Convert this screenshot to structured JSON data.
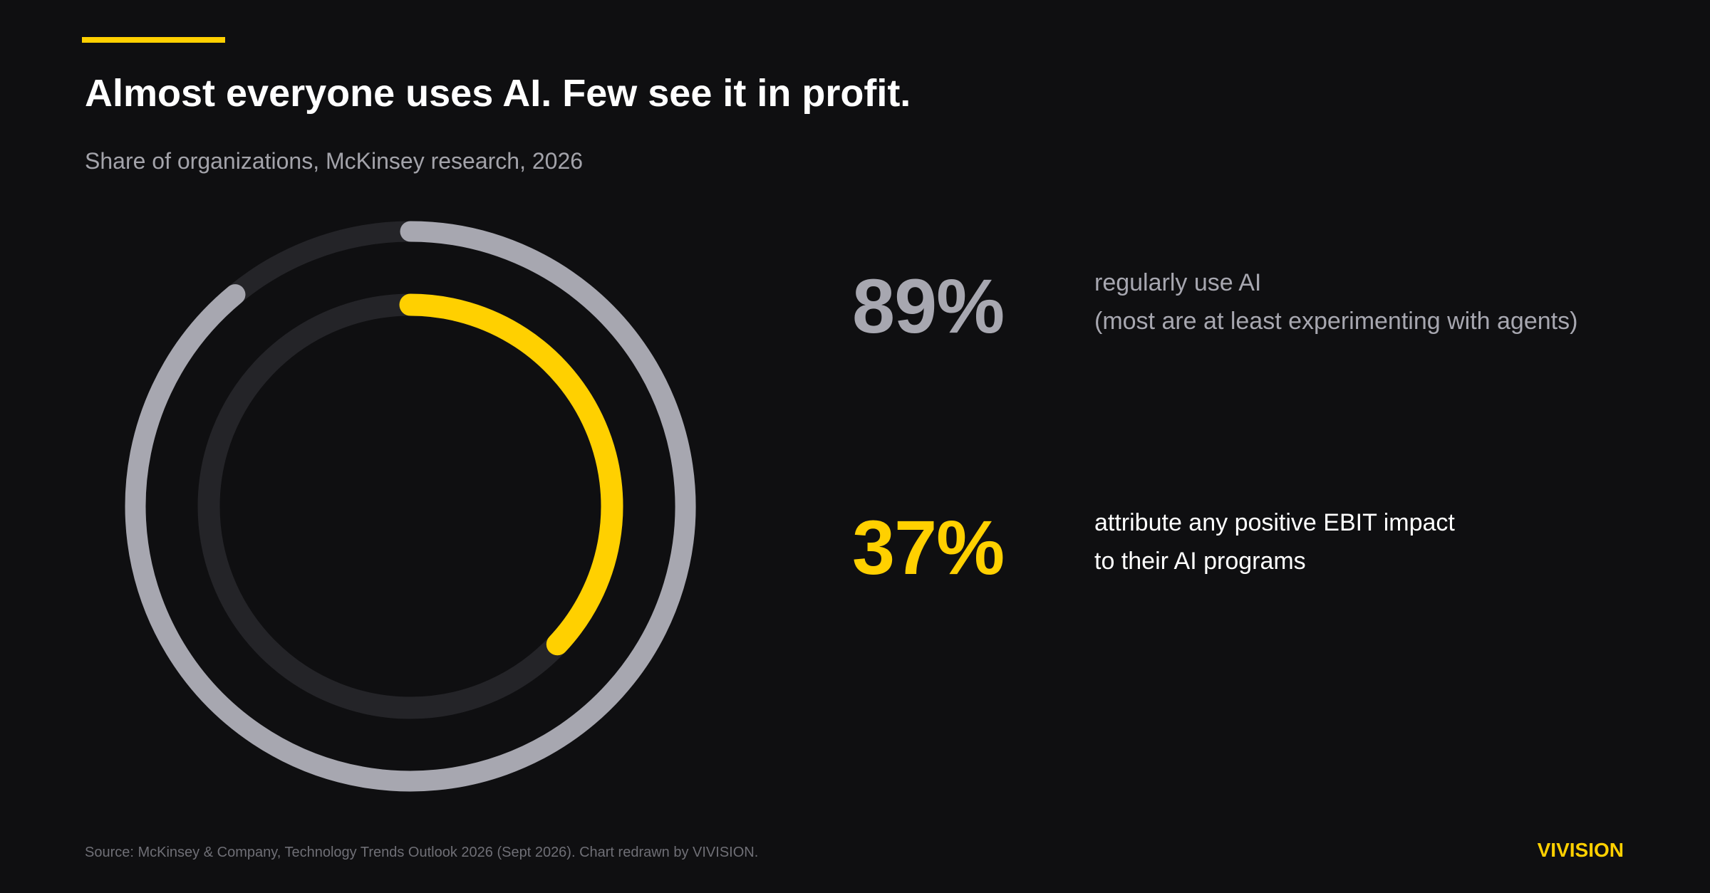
{
  "title": "Almost everyone uses AI. Few see it in profit.",
  "subtitle": "Share of organizations, McKinsey research, 2026",
  "stats": [
    {
      "value": "89%",
      "lines": [
        "regularly use AI",
        "(most are at least experimenting with agents)"
      ]
    },
    {
      "value": "37%",
      "lines": [
        "attribute any positive EBIT impact",
        "to their AI programs"
      ]
    }
  ],
  "source": "Source: McKinsey & Company, Technology Trends Outlook 2026 (Sept 2026). Chart redrawn by VIVISION.",
  "brand": "VIVISION",
  "colors": {
    "background": "#0f0f11",
    "accent": "#ffd000",
    "outer_ring": "#a7a7b0",
    "track": "#242428"
  },
  "chart_data": {
    "type": "pie",
    "style": "concentric-rings",
    "series": [
      {
        "value": 89,
        "unit": "%",
        "color": "#a7a7b0"
      },
      {
        "value": 37,
        "unit": "%",
        "color": "#ffd000"
      }
    ],
    "max": 100
  }
}
